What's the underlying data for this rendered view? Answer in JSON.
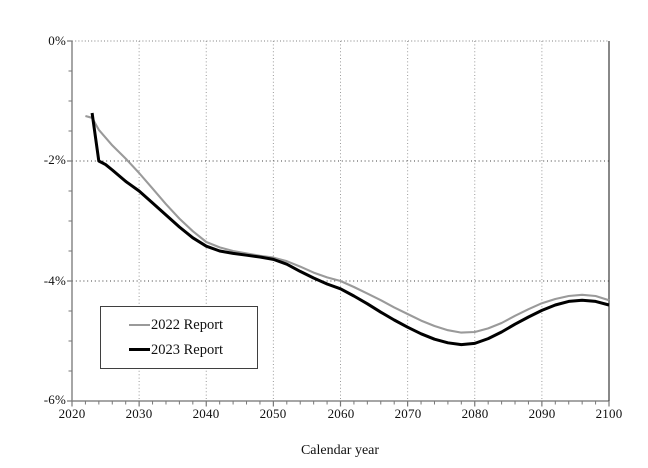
{
  "chart_data": {
    "type": "line",
    "title": "",
    "xlabel": "Calendar year",
    "ylabel": "",
    "xlim": [
      2020,
      2100
    ],
    "ylim": [
      -6,
      0
    ],
    "grid": "on",
    "legend_position": "lower-left",
    "x_ticks": [
      {
        "value": 2020,
        "label": "2020"
      },
      {
        "value": 2030,
        "label": "2030"
      },
      {
        "value": 2040,
        "label": "2040"
      },
      {
        "value": 2050,
        "label": "2050"
      },
      {
        "value": 2060,
        "label": "2060"
      },
      {
        "value": 2070,
        "label": "2070"
      },
      {
        "value": 2080,
        "label": "2080"
      },
      {
        "value": 2090,
        "label": "2090"
      },
      {
        "value": 2100,
        "label": "2100"
      }
    ],
    "x_minor_step": 2,
    "y_ticks": [
      {
        "value": 0,
        "label": "0%"
      },
      {
        "value": -2,
        "label": "-2%"
      },
      {
        "value": -4,
        "label": "-4%"
      },
      {
        "value": -6,
        "label": "-6%"
      }
    ],
    "y_minor_step": 0.5,
    "colors": {
      "gridline_vertical": "#9a9a9a",
      "gridline_horizontal": "#3d3d3d",
      "top_border": "#9a9a9a",
      "axis": "#888888",
      "right_border": "#3a3a3a",
      "tick": "#777777"
    },
    "series": [
      {
        "name": "2022 Report",
        "color": "#9a9a9a",
        "width": 2.1,
        "points": [
          [
            2022,
            -1.25
          ],
          [
            2023,
            -1.28
          ],
          [
            2024,
            -1.48
          ],
          [
            2026,
            -1.74
          ],
          [
            2028,
            -1.96
          ],
          [
            2030,
            -2.2
          ],
          [
            2032,
            -2.46
          ],
          [
            2034,
            -2.72
          ],
          [
            2036,
            -2.96
          ],
          [
            2038,
            -3.17
          ],
          [
            2040,
            -3.35
          ],
          [
            2042,
            -3.44
          ],
          [
            2044,
            -3.5
          ],
          [
            2046,
            -3.54
          ],
          [
            2048,
            -3.58
          ],
          [
            2050,
            -3.61
          ],
          [
            2052,
            -3.67
          ],
          [
            2054,
            -3.76
          ],
          [
            2056,
            -3.86
          ],
          [
            2058,
            -3.94
          ],
          [
            2060,
            -4.0
          ],
          [
            2062,
            -4.1
          ],
          [
            2064,
            -4.21
          ],
          [
            2066,
            -4.32
          ],
          [
            2068,
            -4.44
          ],
          [
            2070,
            -4.55
          ],
          [
            2072,
            -4.66
          ],
          [
            2074,
            -4.75
          ],
          [
            2076,
            -4.82
          ],
          [
            2078,
            -4.86
          ],
          [
            2080,
            -4.85
          ],
          [
            2082,
            -4.79
          ],
          [
            2084,
            -4.7
          ],
          [
            2086,
            -4.58
          ],
          [
            2088,
            -4.47
          ],
          [
            2090,
            -4.37
          ],
          [
            2092,
            -4.3
          ],
          [
            2094,
            -4.25
          ],
          [
            2096,
            -4.23
          ],
          [
            2098,
            -4.25
          ],
          [
            2100,
            -4.32
          ]
        ]
      },
      {
        "name": "2023 Report",
        "color": "#000000",
        "width": 3.0,
        "points": [
          [
            2023,
            -1.2
          ],
          [
            2024,
            -2.0
          ],
          [
            2025,
            -2.06
          ],
          [
            2026,
            -2.15
          ],
          [
            2028,
            -2.34
          ],
          [
            2030,
            -2.5
          ],
          [
            2032,
            -2.7
          ],
          [
            2034,
            -2.9
          ],
          [
            2036,
            -3.1
          ],
          [
            2038,
            -3.28
          ],
          [
            2040,
            -3.42
          ],
          [
            2042,
            -3.5
          ],
          [
            2044,
            -3.54
          ],
          [
            2046,
            -3.57
          ],
          [
            2048,
            -3.6
          ],
          [
            2050,
            -3.64
          ],
          [
            2052,
            -3.72
          ],
          [
            2054,
            -3.84
          ],
          [
            2056,
            -3.95
          ],
          [
            2058,
            -4.05
          ],
          [
            2060,
            -4.13
          ],
          [
            2062,
            -4.25
          ],
          [
            2064,
            -4.38
          ],
          [
            2066,
            -4.52
          ],
          [
            2068,
            -4.65
          ],
          [
            2070,
            -4.77
          ],
          [
            2072,
            -4.88
          ],
          [
            2074,
            -4.97
          ],
          [
            2076,
            -5.03
          ],
          [
            2078,
            -5.06
          ],
          [
            2080,
            -5.04
          ],
          [
            2082,
            -4.96
          ],
          [
            2084,
            -4.85
          ],
          [
            2086,
            -4.72
          ],
          [
            2088,
            -4.6
          ],
          [
            2090,
            -4.49
          ],
          [
            2092,
            -4.4
          ],
          [
            2094,
            -4.34
          ],
          [
            2096,
            -4.32
          ],
          [
            2098,
            -4.34
          ],
          [
            2100,
            -4.4
          ]
        ]
      }
    ]
  }
}
